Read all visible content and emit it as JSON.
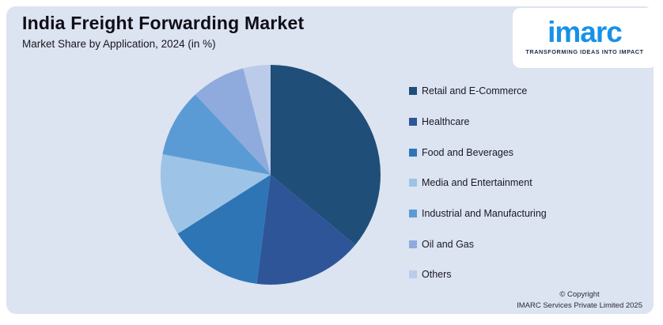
{
  "header": {
    "title": "India Freight Forwarding Market",
    "subtitle": "Market Share by Application, 2024 (in %)"
  },
  "logo": {
    "wordmark": "imarc",
    "tagline": "TRANSFORMING IDEAS INTO IMPACT",
    "wordmark_color": "#1791e8",
    "tagline_color": "#1c2b4a"
  },
  "chart_data": {
    "type": "pie",
    "title": "India Freight Forwarding Market",
    "subtitle": "Market Share by Application, 2024 (in %)",
    "units": "%",
    "categories": [
      "Retail and E-Commerce",
      "Healthcare",
      "Food and Beverages",
      "Media and Entertainment",
      "Industrial and Manufacturing",
      "Oil and Gas",
      "Others"
    ],
    "values": [
      36,
      16,
      14,
      12,
      10,
      8,
      4
    ],
    "colors": [
      "#1F4E79",
      "#2E5597",
      "#2E75B6",
      "#9DC3E6",
      "#5B9BD5",
      "#8FAADC",
      "#BCCBE9"
    ],
    "start_angle_deg": 0,
    "direction": "clockwise",
    "legend_position": "right",
    "data_labels": false
  },
  "legend": {
    "items": [
      {
        "label": "Retail and E-Commerce",
        "color": "#1F4E79"
      },
      {
        "label": "Healthcare",
        "color": "#2E5597"
      },
      {
        "label": "Food and Beverages",
        "color": "#2E75B6"
      },
      {
        "label": "Media and Entertainment",
        "color": "#9DC3E6"
      },
      {
        "label": "Industrial and Manufacturing",
        "color": "#5B9BD5"
      },
      {
        "label": "Oil and Gas",
        "color": "#8FAADC"
      },
      {
        "label": "Others",
        "color": "#BCCBE9"
      }
    ]
  },
  "footer": {
    "line1": "© Copyright",
    "line2": "IMARC Services Private Limited 2025"
  },
  "theme": {
    "page_bg": "#ffffff",
    "panel_bg": "#dce3f1"
  }
}
